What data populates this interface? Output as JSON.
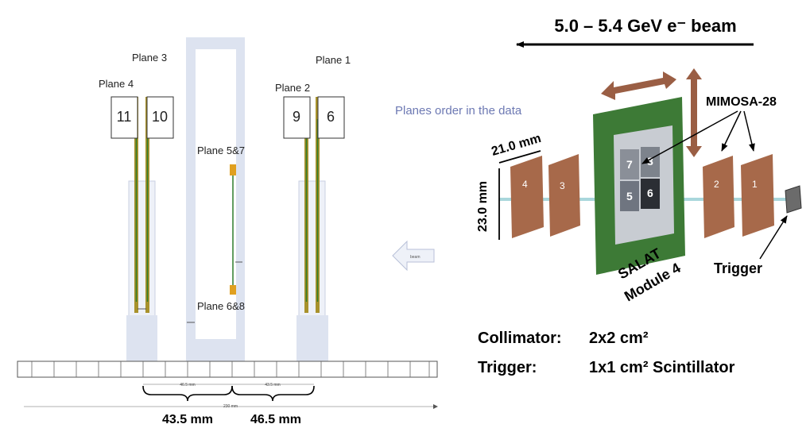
{
  "left_diagram": {
    "plane_labels": {
      "plane3": "Plane 3",
      "plane1": "Plane 1",
      "plane4": "Plane 4",
      "plane2": "Plane 2",
      "plane57": "Plane 5&7",
      "plane68": "Plane 6&8"
    },
    "data_order_numbers": {
      "p11": "11",
      "p10": "10",
      "p9": "9",
      "p6": "6"
    },
    "data_order_caption": "Planes order in the data",
    "beam_arrow_text": "beam",
    "rail_dim_small": [
      "46.5 mm",
      "43.5 mm"
    ],
    "rail_total": "230 mm",
    "spacings": [
      "43.5 mm",
      "46.5 mm"
    ]
  },
  "right_diagram": {
    "beam_title": "5.0 – 5.4 GeV e⁻ beam",
    "dim_width": "21.0 mm",
    "dim_height": "23.0 mm",
    "mimosa_label": "MIMOSA-28",
    "sensors": [
      "4",
      "3",
      "2",
      "1"
    ],
    "salat_chips": [
      "7",
      "8",
      "5",
      "6"
    ],
    "salat_label_line1": "SALAT",
    "salat_label_line2": "Module 4",
    "trigger_label": "Trigger"
  },
  "info": {
    "collimator_label": "Collimator:",
    "collimator_value": "2x2 cm²",
    "trigger_label": "Trigger:",
    "trigger_value": "1x1 cm² Scintillator"
  },
  "colors": {
    "pale_block": "#dde3f0",
    "gold_bar": "#a8922c",
    "green_line": "#2f7d2b",
    "sensor_brown": "#a7694a",
    "board_green": "#3d7a36",
    "arrow_brown": "#9a5e44",
    "beam_line": "#a9d7dc",
    "caption_blue": "#6d79b3"
  }
}
